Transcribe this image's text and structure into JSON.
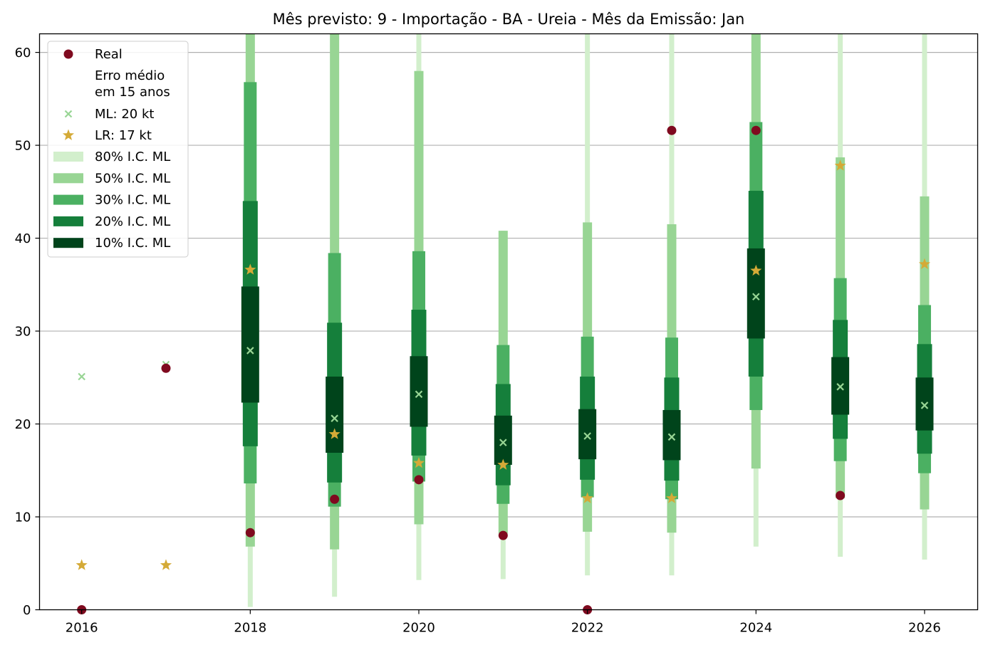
{
  "chart_data": {
    "type": "interval",
    "title": "Mês previsto: 9 - Importação - BA - Ureia - Mês da Emissão: Jan",
    "xlabel": "",
    "ylabel": "",
    "xlim": [
      2015.5,
      2026.63
    ],
    "ylim": [
      0,
      62
    ],
    "xticks": [
      2016,
      2018,
      2020,
      2022,
      2024,
      2026
    ],
    "yticks": [
      0,
      10,
      20,
      30,
      40,
      50,
      60
    ],
    "grid": "horizontal",
    "legend_position": "top-left",
    "legend": {
      "real": "Real",
      "erro_header": "Erro médio\nem 15 anos",
      "ml": "ML: 20 kt",
      "lr": "LR: 17 kt",
      "ci80": "80% I.C. ML",
      "ci50": "50% I.C. ML",
      "ci30": "30% I.C. ML",
      "ci20": "20% I.C. ML",
      "ci10": "10% I.C. ML"
    },
    "colors": {
      "real": "#7f0a1f",
      "ml": "#98d594",
      "lr": "#d4aa37",
      "ci80": "#d2efcc",
      "ci50": "#98d594",
      "ci30": "#4bb062",
      "ci20": "#157f3b",
      "ci10": "#00441b"
    },
    "real": [
      {
        "x": 2016,
        "y": 0
      },
      {
        "x": 2017,
        "y": 26.0
      },
      {
        "x": 2018,
        "y": 8.3
      },
      {
        "x": 2019,
        "y": 11.9
      },
      {
        "x": 2020,
        "y": 14.0
      },
      {
        "x": 2021,
        "y": 8.0
      },
      {
        "x": 2022,
        "y": 0
      },
      {
        "x": 2023,
        "y": 51.6
      },
      {
        "x": 2024,
        "y": 51.6
      },
      {
        "x": 2025,
        "y": 12.3
      }
    ],
    "ml": [
      {
        "x": 2016,
        "y": 25.1
      },
      {
        "x": 2017,
        "y": 26.4
      },
      {
        "x": 2018,
        "y": 27.9
      },
      {
        "x": 2019,
        "y": 20.6
      },
      {
        "x": 2020,
        "y": 23.2
      },
      {
        "x": 2021,
        "y": 18.0
      },
      {
        "x": 2022,
        "y": 18.7
      },
      {
        "x": 2023,
        "y": 18.6
      },
      {
        "x": 2024,
        "y": 33.7
      },
      {
        "x": 2025,
        "y": 24.0
      },
      {
        "x": 2026,
        "y": 22.0
      }
    ],
    "lr": [
      {
        "x": 2016,
        "y": 4.8
      },
      {
        "x": 2017,
        "y": 4.8
      },
      {
        "x": 2018,
        "y": 36.6
      },
      {
        "x": 2019,
        "y": 18.9
      },
      {
        "x": 2020,
        "y": 15.8
      },
      {
        "x": 2021,
        "y": 15.6
      },
      {
        "x": 2022,
        "y": 12.0
      },
      {
        "x": 2023,
        "y": 12.0
      },
      {
        "x": 2024,
        "y": 36.5
      },
      {
        "x": 2025,
        "y": 47.8
      },
      {
        "x": 2026,
        "y": 37.2
      }
    ],
    "intervals": [
      {
        "x": 2018,
        "ci80": [
          0.3,
          62
        ],
        "ci50": [
          6.8,
          62
        ],
        "ci30": [
          13.6,
          56.8
        ],
        "ci20": [
          17.6,
          44.0
        ],
        "ci10": [
          22.3,
          34.8
        ]
      },
      {
        "x": 2019,
        "ci80": [
          1.4,
          62
        ],
        "ci50": [
          6.5,
          62
        ],
        "ci30": [
          11.1,
          38.4
        ],
        "ci20": [
          13.7,
          30.9
        ],
        "ci10": [
          16.9,
          25.1
        ]
      },
      {
        "x": 2020,
        "ci80": [
          3.2,
          62
        ],
        "ci50": [
          9.2,
          58.0
        ],
        "ci30": [
          13.8,
          38.6
        ],
        "ci20": [
          16.6,
          32.3
        ],
        "ci10": [
          19.7,
          27.3
        ]
      },
      {
        "x": 2021,
        "ci80": [
          3.3,
          40.8
        ],
        "ci50": [
          8.2,
          40.8
        ],
        "ci30": [
          11.4,
          28.5
        ],
        "ci20": [
          13.4,
          24.3
        ],
        "ci10": [
          15.6,
          20.9
        ]
      },
      {
        "x": 2022,
        "ci80": [
          3.7,
          62
        ],
        "ci50": [
          8.4,
          41.7
        ],
        "ci30": [
          12.1,
          29.4
        ],
        "ci20": [
          14.0,
          25.1
        ],
        "ci10": [
          16.2,
          21.6
        ]
      },
      {
        "x": 2023,
        "ci80": [
          3.7,
          62
        ],
        "ci50": [
          8.3,
          41.5
        ],
        "ci30": [
          11.9,
          29.3
        ],
        "ci20": [
          13.9,
          25.0
        ],
        "ci10": [
          16.1,
          21.5
        ]
      },
      {
        "x": 2024,
        "ci80": [
          6.8,
          62
        ],
        "ci50": [
          15.2,
          62
        ],
        "ci30": [
          21.5,
          52.5
        ],
        "ci20": [
          25.1,
          45.1
        ],
        "ci10": [
          29.2,
          38.9
        ]
      },
      {
        "x": 2025,
        "ci80": [
          5.7,
          62
        ],
        "ci50": [
          12.0,
          48.7
        ],
        "ci30": [
          16.0,
          35.7
        ],
        "ci20": [
          18.4,
          31.2
        ],
        "ci10": [
          21.0,
          27.2
        ]
      },
      {
        "x": 2026,
        "ci80": [
          5.4,
          62
        ],
        "ci50": [
          10.8,
          44.5
        ],
        "ci30": [
          14.7,
          32.8
        ],
        "ci20": [
          16.8,
          28.6
        ],
        "ci10": [
          19.3,
          25.0
        ]
      }
    ]
  }
}
